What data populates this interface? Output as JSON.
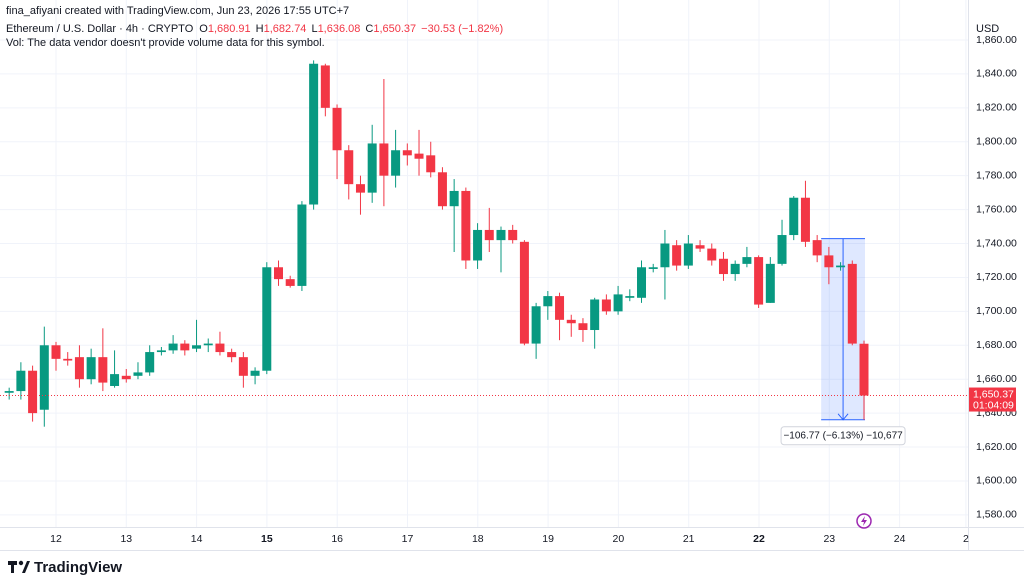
{
  "attribution": "fina_afiyani created with TradingView.com, Jun 23, 2026 17:55 UTC+7",
  "legend": {
    "symbol": "Ethereum / U.S. Dollar · 4h · CRYPTO",
    "fields": [
      {
        "key": "O",
        "value": "1,680.91"
      },
      {
        "key": "H",
        "value": "1,682.74"
      },
      {
        "key": "L",
        "value": "1,636.08"
      },
      {
        "key": "C",
        "value": "1,650.37"
      }
    ],
    "change": "−30.53 (−1.82%)"
  },
  "volume_note": "Vol: The data vendor doesn't provide volume data for this symbol.",
  "currency": "USD",
  "last_price_label": "1,650.37",
  "countdown": "01:04:09",
  "brand": "TradingView",
  "chart_data": {
    "type": "candlestick",
    "up_color": "#089981",
    "down_color": "#f23645",
    "xlabels": [
      "12",
      "13",
      "14",
      "15",
      "16",
      "17",
      "18",
      "19",
      "20",
      "21",
      "22",
      "23",
      "24",
      "2"
    ],
    "open": [
      1652,
      1653,
      1665,
      1642,
      1680,
      1672,
      1673,
      1660,
      1673,
      1656,
      1662,
      1662,
      1664,
      1676,
      1677,
      1681,
      1678,
      1680,
      1681,
      1676,
      1673,
      1662,
      1665,
      1726,
      1719,
      1715,
      1763,
      1845,
      1820,
      1795,
      1775,
      1770,
      1799,
      1780,
      1795,
      1793,
      1792,
      1782,
      1762,
      1771,
      1730,
      1748,
      1742,
      1748,
      1741,
      1681,
      1703,
      1709,
      1695,
      1693,
      1689,
      1707,
      1700,
      1708,
      1708,
      1725,
      1726,
      1739,
      1727,
      1739,
      1737,
      1731,
      1722,
      1728,
      1732,
      1705,
      1728,
      1745,
      1767,
      1742,
      1733,
      1726,
      1728,
      1680.91
    ],
    "high": [
      1655,
      1670,
      1668,
      1691,
      1682,
      1676,
      1680,
      1678,
      1690,
      1677,
      1666,
      1670,
      1680,
      1679,
      1686,
      1683,
      1695,
      1684,
      1688,
      1678,
      1676,
      1667,
      1729,
      1730,
      1721,
      1765,
      1848,
      1846,
      1822,
      1798,
      1780,
      1810,
      1837,
      1807,
      1799,
      1807,
      1800,
      1785,
      1778,
      1773,
      1752,
      1761,
      1750,
      1751,
      1742,
      1705,
      1712,
      1711,
      1698,
      1696,
      1708,
      1710,
      1715,
      1713,
      1730,
      1728,
      1748,
      1742,
      1745,
      1742,
      1740,
      1735,
      1730,
      1738,
      1733,
      1732,
      1754,
      1768,
      1777,
      1745,
      1738,
      1729,
      1730,
      1682.74
    ],
    "low": [
      1648,
      1648,
      1635,
      1632,
      1665,
      1668,
      1655,
      1657,
      1653,
      1655,
      1658,
      1660,
      1662,
      1674,
      1675,
      1674,
      1676,
      1676,
      1674,
      1670,
      1655,
      1657,
      1663,
      1715,
      1714,
      1712,
      1760,
      1815,
      1778,
      1766,
      1757,
      1764,
      1762,
      1773,
      1786,
      1780,
      1779,
      1760,
      1735,
      1725,
      1725,
      1735,
      1723,
      1740,
      1680,
      1672,
      1695,
      1683,
      1685,
      1682,
      1678,
      1698,
      1698,
      1706,
      1705,
      1723,
      1707,
      1724,
      1725,
      1735,
      1727,
      1718,
      1718,
      1726,
      1702,
      1705,
      1727,
      1742,
      1738,
      1729,
      1716,
      1724,
      1680,
      1636.08
    ],
    "close": [
      1653,
      1665,
      1640,
      1680,
      1672,
      1671,
      1660,
      1673,
      1658,
      1663,
      1660,
      1664,
      1676,
      1677,
      1681,
      1677,
      1680,
      1681,
      1676,
      1673,
      1662,
      1665,
      1726,
      1719,
      1715,
      1763,
      1846,
      1820,
      1795,
      1775,
      1770,
      1799,
      1780,
      1795,
      1792,
      1790,
      1782,
      1762,
      1771,
      1730,
      1748,
      1742,
      1748,
      1742,
      1681,
      1703,
      1709,
      1695,
      1693,
      1689,
      1707,
      1700,
      1710,
      1709,
      1726,
      1726,
      1740,
      1727,
      1740,
      1737,
      1730,
      1722,
      1728,
      1732,
      1704,
      1728,
      1745,
      1767,
      1741,
      1733,
      1726,
      1727,
      1681,
      1650.37
    ],
    "ylim": [
      1566,
      1876
    ],
    "yticks": [
      {
        "value": 1580,
        "label": "1,580.00"
      },
      {
        "value": 1600,
        "label": "1,600.00"
      },
      {
        "value": 1620,
        "label": "1,620.00"
      },
      {
        "value": 1640,
        "label": "1,640.00"
      },
      {
        "value": 1660,
        "label": "1,660.00"
      },
      {
        "value": 1680,
        "label": "1,680.00"
      },
      {
        "value": 1700,
        "label": "1,700.00"
      },
      {
        "value": 1720,
        "label": "1,720.00"
      },
      {
        "value": 1740,
        "label": "1,740.00"
      },
      {
        "value": 1760,
        "label": "1,760.00"
      },
      {
        "value": 1780,
        "label": "1,780.00"
      },
      {
        "value": 1800,
        "label": "1,800.00"
      },
      {
        "value": 1820,
        "label": "1,820.00"
      },
      {
        "value": 1840,
        "label": "1,840.00"
      },
      {
        "value": 1860,
        "label": "1,860.00"
      }
    ],
    "grid": true,
    "measure": {
      "top": 1742.85,
      "bottom": 1636.08,
      "label": "−106.77 (−6.13%) −10,677"
    }
  }
}
